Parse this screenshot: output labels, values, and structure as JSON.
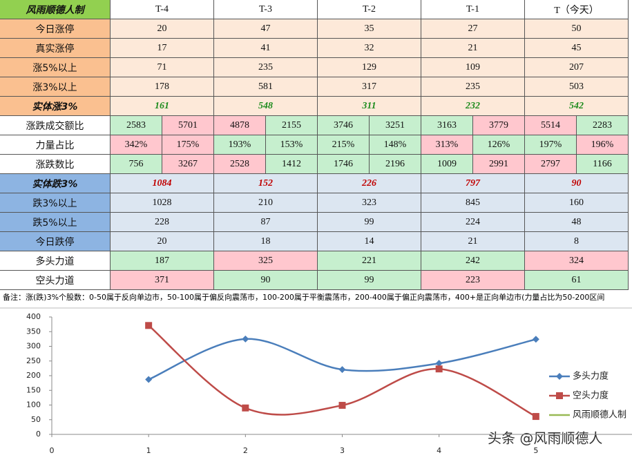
{
  "table": {
    "header": [
      "风雨顺德人制",
      "T-4",
      "T-3",
      "T-2",
      "T-1",
      "T（今天）"
    ],
    "header_color": "#92d050",
    "rows": [
      {
        "label": "今日涨停",
        "cells": [
          "20",
          "47",
          "35",
          "27",
          "50"
        ],
        "label_color": "#fac090",
        "cell_colors": [
          "#fde9d9",
          "#fde9d9",
          "#fde9d9",
          "#fde9d9",
          "#fde9d9"
        ]
      },
      {
        "label": "真实涨停",
        "cells": [
          "17",
          "41",
          "32",
          "21",
          "45"
        ],
        "label_color": "#fac090",
        "cell_colors": [
          "#fde9d9",
          "#fde9d9",
          "#fde9d9",
          "#fde9d9",
          "#fde9d9"
        ]
      },
      {
        "label": "涨5%以上",
        "cells": [
          "71",
          "235",
          "129",
          "109",
          "207"
        ],
        "label_color": "#fac090",
        "cell_colors": [
          "#fde9d9",
          "#fde9d9",
          "#fde9d9",
          "#fde9d9",
          "#fde9d9"
        ]
      },
      {
        "label": "涨3%以上",
        "cells": [
          "178",
          "581",
          "317",
          "235",
          "503"
        ],
        "label_color": "#fac090",
        "cell_colors": [
          "#fde9d9",
          "#fde9d9",
          "#fde9d9",
          "#fde9d9",
          "#fde9d9"
        ]
      },
      {
        "label": "实体涨3%",
        "cells": [
          "161",
          "548",
          "311",
          "232",
          "542"
        ],
        "label_color": "#fac090",
        "cell_colors": [
          "#fde9d9",
          "#fde9d9",
          "#fde9d9",
          "#fde9d9",
          "#fde9d9"
        ],
        "text_color": "#1e8c1e"
      },
      {
        "label": "涨跌成交额比",
        "cells": [
          "2583",
          "5701",
          "4878",
          "2155",
          "3746",
          "3251",
          "3163",
          "3779",
          "5514",
          "2283"
        ],
        "label_color": "#ffffff",
        "cell_colors": [
          "#c6efce",
          "#ffc7ce",
          "#ffc7ce",
          "#c6efce",
          "#c6efce",
          "#c6efce",
          "#c6efce",
          "#ffc7ce",
          "#ffc7ce",
          "#c6efce"
        ]
      },
      {
        "label": "力量占比",
        "cells": [
          "342%",
          "175%",
          "193%",
          "153%",
          "215%",
          "148%",
          "313%",
          "126%",
          "197%",
          "196%"
        ],
        "label_color": "#ffffff",
        "cell_colors": [
          "#ffc7ce",
          "#ffc7ce",
          "#c6efce",
          "#c6efce",
          "#c6efce",
          "#c6efce",
          "#ffc7ce",
          "#c6efce",
          "#c6efce",
          "#ffc7ce"
        ]
      },
      {
        "label": "涨跌数比",
        "cells": [
          "756",
          "3267",
          "2528",
          "1412",
          "1746",
          "2196",
          "1009",
          "2991",
          "2797",
          "1166"
        ],
        "label_color": "#ffffff",
        "cell_colors": [
          "#c6efce",
          "#ffc7ce",
          "#ffc7ce",
          "#c6efce",
          "#c6efce",
          "#c6efce",
          "#c6efce",
          "#ffc7ce",
          "#ffc7ce",
          "#c6efce"
        ]
      },
      {
        "label": "实体跌3%",
        "cells": [
          "1084",
          "152",
          "226",
          "797",
          "90"
        ],
        "label_color": "#8db4e2",
        "cell_colors": [
          "#dce6f1",
          "#dce6f1",
          "#dce6f1",
          "#dce6f1",
          "#dce6f1"
        ],
        "text_color": "#c00000"
      },
      {
        "label": "跌3%以上",
        "cells": [
          "1028",
          "210",
          "323",
          "845",
          "160"
        ],
        "label_color": "#8db4e2",
        "cell_colors": [
          "#dce6f1",
          "#dce6f1",
          "#dce6f1",
          "#dce6f1",
          "#dce6f1"
        ]
      },
      {
        "label": "跌5%以上",
        "cells": [
          "228",
          "87",
          "99",
          "224",
          "48"
        ],
        "label_color": "#8db4e2",
        "cell_colors": [
          "#dce6f1",
          "#dce6f1",
          "#dce6f1",
          "#dce6f1",
          "#dce6f1"
        ]
      },
      {
        "label": "今日跌停",
        "cells": [
          "20",
          "18",
          "14",
          "21",
          "8"
        ],
        "label_color": "#8db4e2",
        "cell_colors": [
          "#dce6f1",
          "#dce6f1",
          "#dce6f1",
          "#dce6f1",
          "#dce6f1"
        ]
      },
      {
        "label": "多头力道",
        "cells": [
          "187",
          "325",
          "221",
          "242",
          "324"
        ],
        "label_color": "#ffffff",
        "cell_colors": [
          "#c6efce",
          "#ffc7ce",
          "#c6efce",
          "#c6efce",
          "#ffc7ce"
        ]
      },
      {
        "label": "空头力道",
        "cells": [
          "371",
          "90",
          "99",
          "223",
          "61"
        ],
        "label_color": "#ffffff",
        "cell_colors": [
          "#ffc7ce",
          "#c6efce",
          "#c6efce",
          "#ffc7ce",
          "#c6efce"
        ]
      }
    ]
  },
  "note": "备注：涨(跌)3%个股数：0-50属于反向单边市，50-100属于偏反向震荡市，100-200属于平衡震荡市，200-400属于偏正向震荡市，400+是正向单边市(力量占比为50-200区间",
  "chart_data": {
    "type": "line",
    "x": [
      1,
      2,
      3,
      4,
      5
    ],
    "series": [
      {
        "name": "多头力度",
        "color": "#4a7ebb",
        "marker": "diamond",
        "values": [
          187,
          325,
          221,
          242,
          324
        ]
      },
      {
        "name": "空头力度",
        "color": "#be4b48",
        "marker": "square",
        "values": [
          371,
          90,
          99,
          223,
          61
        ]
      },
      {
        "name": "风雨顺德人制",
        "color": "#98b954",
        "values": [
          null,
          null,
          null,
          null,
          null
        ]
      }
    ],
    "xlim": [
      0,
      6
    ],
    "xticks": [
      0,
      1,
      2,
      3,
      4,
      5
    ],
    "ylim": [
      0,
      400
    ],
    "yticks": [
      0,
      50,
      100,
      150,
      200,
      250,
      300,
      350,
      400
    ],
    "smooth": true,
    "legend": "right"
  },
  "watermark": "头条 @风雨顺德人"
}
